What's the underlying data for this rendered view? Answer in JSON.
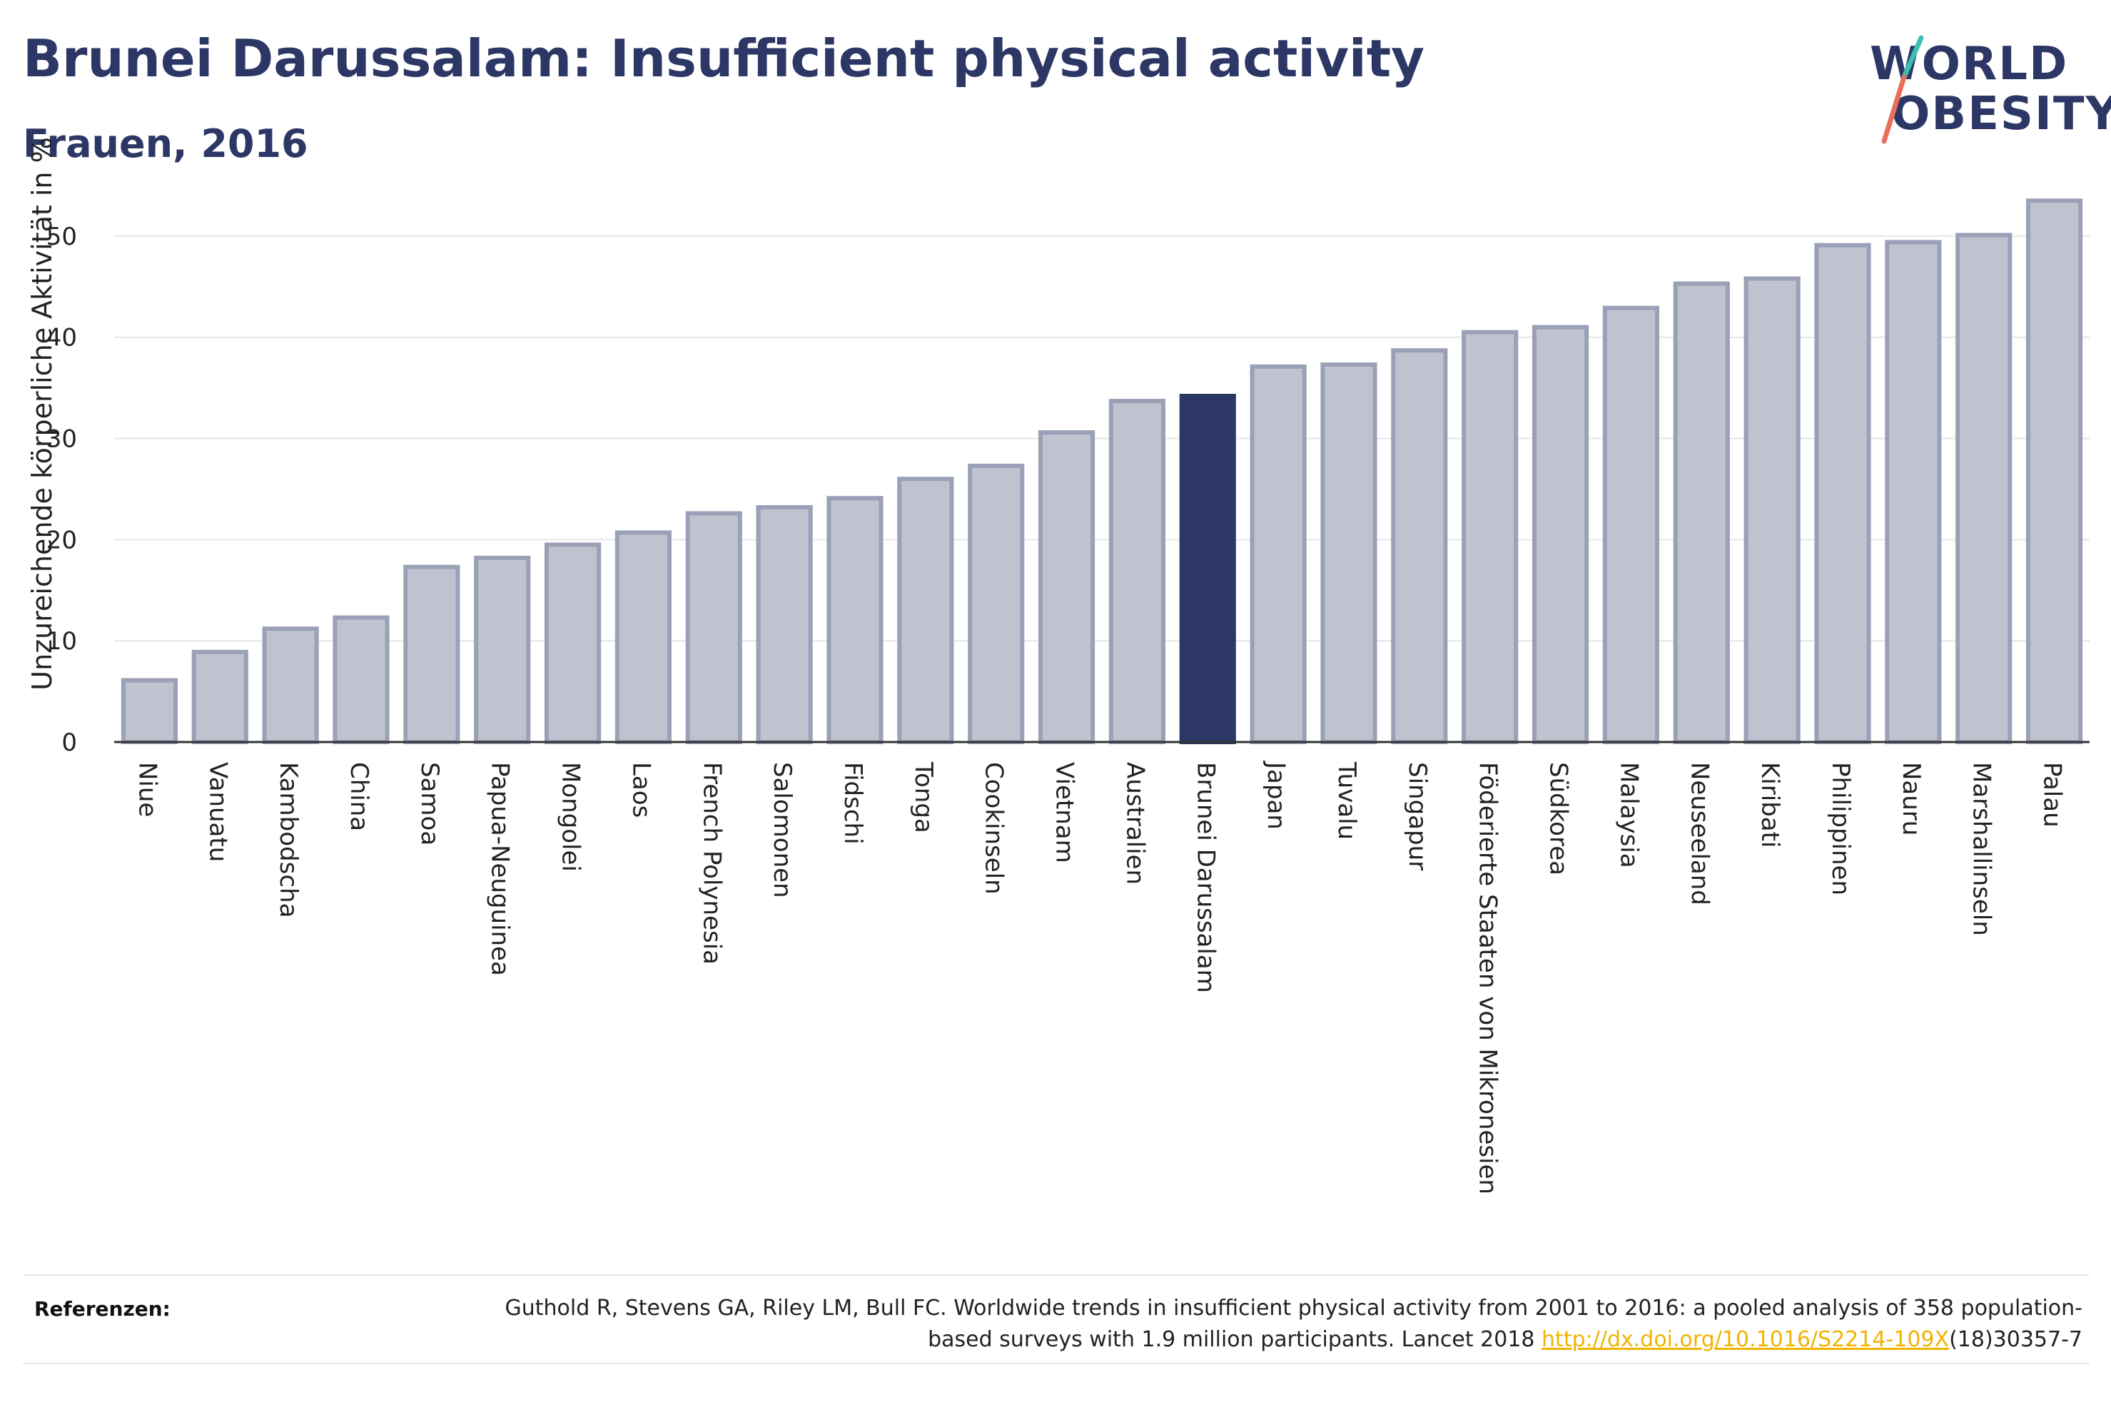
{
  "header": {
    "title": "Brunei Darussalam: Insufficient physical activity",
    "subtitle": "Frauen, 2016"
  },
  "logo": {
    "line1": "WORLD",
    "line2": "OBESITY"
  },
  "colors": {
    "highlight": "#2d3766",
    "bar_fill": "#c0c3cf",
    "bar_stroke": "#9aa0b6",
    "grid": "#e6e6e6",
    "logo_teal": "#3bbfb0",
    "logo_coral": "#e8705a",
    "link": "#f0b400"
  },
  "chart_data": {
    "type": "bar",
    "ylabel": "Unzureichende körperliche Aktivität in %",
    "ylim": [
      0,
      55
    ],
    "yticks": [
      0,
      10,
      20,
      30,
      40,
      50
    ],
    "grid": true,
    "highlight": "Brunei Darussalam",
    "categories": [
      "Niue",
      "Vanuatu",
      "Kambodscha",
      "China",
      "Samoa",
      "Papua-Neuguinea",
      "Mongolei",
      "Laos",
      "French Polynesia",
      "Salomonen",
      "Fidschi",
      "Tonga",
      "Cookinseln",
      "Vietnam",
      "Australien",
      "Brunei Darussalam",
      "Japan",
      "Tuvalu",
      "Singapur",
      "Föderierte Staaten von Mikronesien",
      "Südkorea",
      "Malaysia",
      "Neuseeland",
      "Kiribati",
      "Philippinen",
      "Nauru",
      "Marshallinseln",
      "Palau"
    ],
    "values": [
      6.1,
      8.9,
      11.2,
      12.3,
      17.3,
      18.2,
      19.5,
      20.7,
      22.6,
      23.2,
      24.1,
      26.0,
      27.3,
      30.6,
      33.7,
      34.2,
      37.1,
      37.3,
      38.7,
      40.5,
      41.0,
      42.9,
      45.3,
      45.8,
      49.1,
      49.4,
      50.1,
      53.5
    ]
  },
  "references": {
    "label": "Referenzen:",
    "text_before": "Guthold R, Stevens GA, Riley LM, Bull FC. Worldwide trends in insufficient physical activity from 2001 to 2016: a pooled analysis of 358 population-based surveys with 1.9 million participants. Lancet 2018 ",
    "link": "http://dx.doi.org/10.1016/S2214-109X",
    "text_after": "(18)30357-7"
  }
}
